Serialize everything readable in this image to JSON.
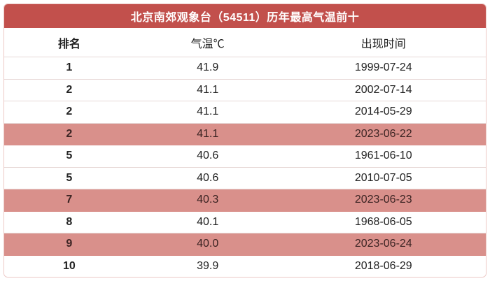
{
  "colors": {
    "header_bg": "#c2504c",
    "header_text": "#ffffff",
    "row_text": "#222222",
    "highlight_bg": "#d9908b",
    "highlight_text": "#3c2423",
    "border": "#ecc8c5",
    "separator": "#e7d8d6"
  },
  "table": {
    "title": "北京南郊观象台（54511）历年最高气温前十",
    "columns": {
      "rank": "排名",
      "temp": "气温℃",
      "date": "出现时间"
    },
    "rows": [
      {
        "rank": "1",
        "temp": "41.9",
        "date": "1999-07-24",
        "highlight": false
      },
      {
        "rank": "2",
        "temp": "41.1",
        "date": "2002-07-14",
        "highlight": false
      },
      {
        "rank": "2",
        "temp": "41.1",
        "date": "2014-05-29",
        "highlight": false
      },
      {
        "rank": "2",
        "temp": "41.1",
        "date": "2023-06-22",
        "highlight": true
      },
      {
        "rank": "5",
        "temp": "40.6",
        "date": "1961-06-10",
        "highlight": false
      },
      {
        "rank": "5",
        "temp": "40.6",
        "date": "2010-07-05",
        "highlight": false
      },
      {
        "rank": "7",
        "temp": "40.3",
        "date": "2023-06-23",
        "highlight": true
      },
      {
        "rank": "8",
        "temp": "40.1",
        "date": "1968-06-05",
        "highlight": false
      },
      {
        "rank": "9",
        "temp": "40.0",
        "date": "2023-06-24",
        "highlight": true
      },
      {
        "rank": "10",
        "temp": "39.9",
        "date": "2018-06-29",
        "highlight": false
      }
    ]
  },
  "chart_data": {
    "type": "table",
    "title": "北京南郊观象台（54511）历年最高气温前十",
    "columns": [
      "排名",
      "气温℃",
      "出现时间"
    ],
    "rows": [
      [
        "1",
        41.9,
        "1999-07-24"
      ],
      [
        "2",
        41.1,
        "2002-07-14"
      ],
      [
        "2",
        41.1,
        "2014-05-29"
      ],
      [
        "2",
        41.1,
        "2023-06-22"
      ],
      [
        "5",
        40.6,
        "1961-06-10"
      ],
      [
        "5",
        40.6,
        "2010-07-05"
      ],
      [
        "7",
        40.3,
        "2023-06-23"
      ],
      [
        "8",
        40.1,
        "1968-06-05"
      ],
      [
        "9",
        40.0,
        "2023-06-24"
      ],
      [
        "10",
        39.9,
        "2018-06-29"
      ]
    ],
    "highlighted_row_indexes": [
      3,
      6,
      8
    ],
    "highlight_meaning": "records set in 2023"
  }
}
